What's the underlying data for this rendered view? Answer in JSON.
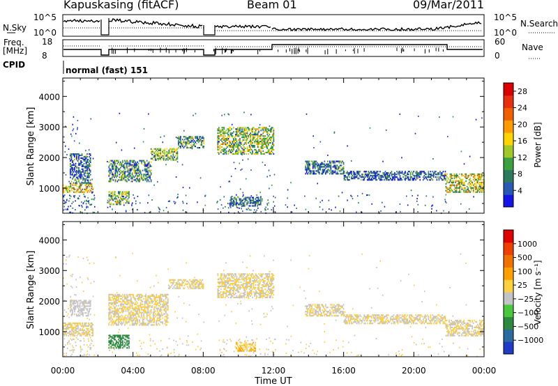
{
  "header": {
    "site": "Kapuskasing (fitACF)",
    "beam": "Beam 01",
    "date": "09/Mar/2011"
  },
  "top_panels": {
    "nsky": {
      "label": "N.Sky",
      "ticks": [
        "10^5",
        "10^0"
      ],
      "right_label": "N.Search",
      "right_ticks": [
        "10^5",
        "10^0"
      ]
    },
    "freq": {
      "label_line1": "Freq.",
      "label_line2": "[MHz]",
      "ticks": [
        "18",
        "8"
      ],
      "right_label": "Nave",
      "right_ticks": [
        "60",
        "0"
      ]
    },
    "cpid": {
      "label": "CPID",
      "value": "normal (fast) 151"
    }
  },
  "x_axis": {
    "label": "Time UT",
    "ticks": [
      "00:00",
      "04:00",
      "08:00",
      "12:00",
      "16:00",
      "20:00",
      "00:00"
    ]
  },
  "chart_data": [
    {
      "type": "heatmap",
      "title": "",
      "xlabel": "Time UT",
      "ylabel": "Slant Range [km]",
      "xlim": [
        0,
        24
      ],
      "ylim": [
        180,
        4600
      ],
      "y_ticks": [
        "1000",
        "2000",
        "3000",
        "4000"
      ],
      "colorbar": {
        "label": "Power [dB]",
        "ticks": [
          "4",
          "8",
          "12",
          "16",
          "20",
          "24",
          "28"
        ],
        "range": [
          0,
          30
        ],
        "colors": [
          "#1414e8",
          "#285ab4",
          "#2c7a5e",
          "#3aa040",
          "#a0c828",
          "#ffd400",
          "#ff9a00",
          "#f06000",
          "#e83010",
          "#dc0000"
        ]
      },
      "bands": [
        {
          "t0": 0.0,
          "t1": 1.7,
          "r0": 850,
          "r1": 1150,
          "level": 16
        },
        {
          "t0": 0.4,
          "t1": 1.6,
          "r0": 1150,
          "r1": 2100,
          "level": 5
        },
        {
          "t0": 2.6,
          "t1": 5.0,
          "r0": 1200,
          "r1": 1900,
          "level": 8
        },
        {
          "t0": 5.0,
          "t1": 6.5,
          "r0": 1900,
          "r1": 2300,
          "level": 12
        },
        {
          "t0": 6.5,
          "t1": 8.0,
          "r0": 2300,
          "r1": 2700,
          "level": 8
        },
        {
          "t0": 2.6,
          "t1": 3.8,
          "r0": 450,
          "r1": 900,
          "level": 12
        },
        {
          "t0": 8.8,
          "t1": 12.0,
          "r0": 2100,
          "r1": 3000,
          "level": 12
        },
        {
          "t0": 9.5,
          "t1": 11.3,
          "r0": 400,
          "r1": 700,
          "level": 6
        },
        {
          "t0": 13.8,
          "t1": 16.0,
          "r0": 1450,
          "r1": 1900,
          "level": 6
        },
        {
          "t0": 16.0,
          "t1": 21.8,
          "r0": 1250,
          "r1": 1550,
          "level": 5
        },
        {
          "t0": 21.8,
          "t1": 24.0,
          "r0": 850,
          "r1": 1450,
          "level": 14
        }
      ]
    },
    {
      "type": "heatmap",
      "title": "",
      "xlabel": "Time UT",
      "ylabel": "Slant Range [km]",
      "xlim": [
        0,
        24
      ],
      "ylim": [
        180,
        4600
      ],
      "y_ticks": [
        "1000",
        "2000",
        "3000",
        "4000"
      ],
      "colorbar": {
        "label": "Velocity [m s⁻¹]",
        "ticks": [
          "1000",
          "500",
          "100",
          "25",
          "−25",
          "−100",
          "−500",
          "−1000"
        ],
        "range": [
          -1000,
          1000
        ],
        "colors": [
          "#1e3cc8",
          "#2c6aa0",
          "#2c8a40",
          "#48c83c",
          "#c4c4c4",
          "#ffd040",
          "#ffa000",
          "#f07000",
          "#f04000",
          "#e00000"
        ]
      },
      "bands": [
        {
          "t0": 0.0,
          "t1": 1.7,
          "r0": 850,
          "r1": 1300,
          "level": 0
        },
        {
          "t0": 0.4,
          "t1": 1.6,
          "r0": 1500,
          "r1": 2000,
          "level": -50
        },
        {
          "t0": 2.6,
          "t1": 6.0,
          "r0": 1200,
          "r1": 2200,
          "level": 0
        },
        {
          "t0": 6.0,
          "t1": 8.0,
          "r0": 2400,
          "r1": 2700,
          "level": 0
        },
        {
          "t0": 2.6,
          "t1": 3.8,
          "r0": 450,
          "r1": 900,
          "level": -500
        },
        {
          "t0": 8.8,
          "t1": 12.0,
          "r0": 2100,
          "r1": 2900,
          "level": 0
        },
        {
          "t0": 9.8,
          "t1": 11.0,
          "r0": 350,
          "r1": 650,
          "level": 200
        },
        {
          "t0": 13.8,
          "t1": 16.0,
          "r0": 1500,
          "r1": 1900,
          "level": 0
        },
        {
          "t0": 16.0,
          "t1": 21.8,
          "r0": 1250,
          "r1": 1550,
          "level": 0
        },
        {
          "t0": 21.8,
          "t1": 24.0,
          "r0": 850,
          "r1": 1350,
          "level": 0
        }
      ]
    }
  ]
}
